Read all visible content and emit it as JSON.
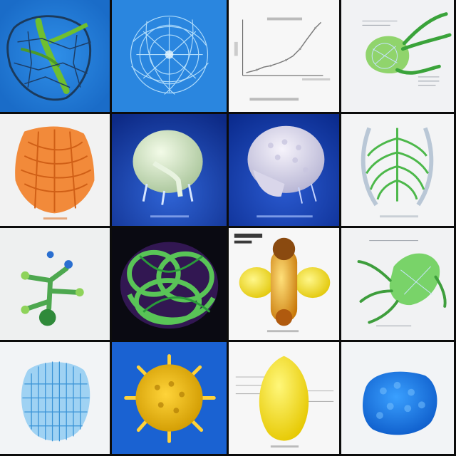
{
  "grid": {
    "columns": 4,
    "rows": 4,
    "tiles": [
      {
        "subject": "green-veined-leaf-structure",
        "background": "#1f78d6"
      },
      {
        "subject": "cyan-filament-network-sphere",
        "background": "#2a86df"
      },
      {
        "subject": "line-chart-figure",
        "background": "#f4f4f4"
      },
      {
        "subject": "green-branching-organ",
        "background": "#f1f2f4"
      },
      {
        "subject": "orange-ribbed-organ",
        "background": "#f2f2f2"
      },
      {
        "subject": "pale-green-bulb-on-stand",
        "background": "#1236a0"
      },
      {
        "subject": "white-coral-brain",
        "background": "#0e3aa8"
      },
      {
        "subject": "green-ribcage-structure",
        "background": "#f3f4f5"
      },
      {
        "subject": "green-branching-nodes",
        "background": "#eef0f0"
      },
      {
        "subject": "green-looped-tubes",
        "background": "#0a0a12"
      },
      {
        "subject": "amber-capsule-figure",
        "background": "#f4f4f4"
      },
      {
        "subject": "green-tendril-cluster",
        "background": "#f1f2f3"
      },
      {
        "subject": "blue-mesh-lattice",
        "background": "#f2f4f6"
      },
      {
        "subject": "yellow-spiky-pollen",
        "background": "#1a62d2"
      },
      {
        "subject": "yellow-lemon-oval",
        "background": "#f3f3f3"
      },
      {
        "subject": "blue-textured-blob",
        "background": "#f2f4f6"
      }
    ]
  }
}
